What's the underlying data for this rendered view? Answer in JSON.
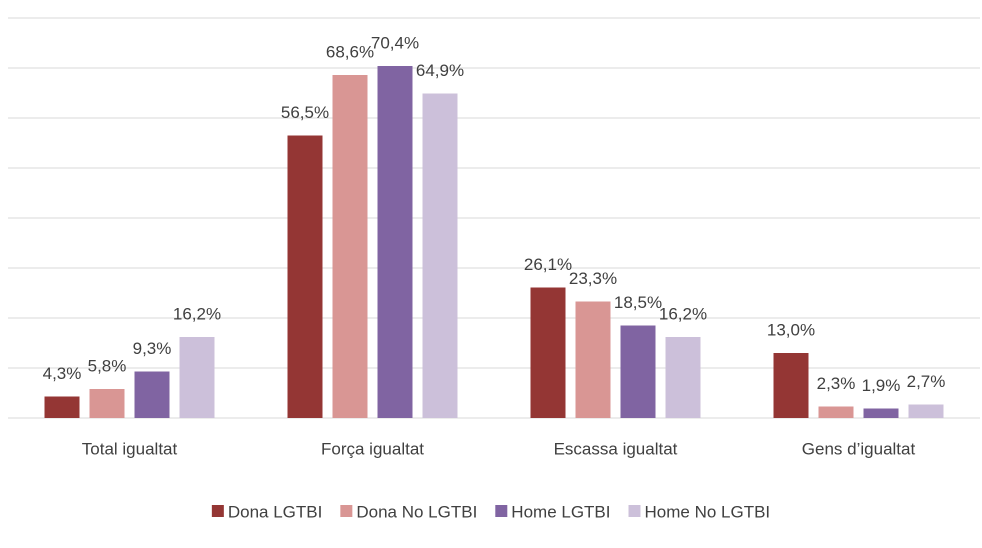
{
  "chart_data": {
    "type": "bar",
    "categories": [
      "Total igualtat",
      "Força igualtat",
      "Escassa igualtat",
      "Gens d’igualtat"
    ],
    "series": [
      {
        "name": "Dona LGTBI",
        "color": "#943634",
        "values": [
          4.3,
          56.5,
          26.1,
          13.0
        ],
        "value_labels": [
          "4,3%",
          "56,5%",
          "26,1%",
          "13,0%"
        ]
      },
      {
        "name": "Dona No LGTBI",
        "color": "#d99694",
        "values": [
          5.8,
          68.6,
          23.3,
          2.3
        ],
        "value_labels": [
          "5,8%",
          "68,6%",
          "23,3%",
          "2,3%"
        ]
      },
      {
        "name": "Home LGTBI",
        "color": "#8064a2",
        "values": [
          9.3,
          70.4,
          18.5,
          1.9
        ],
        "value_labels": [
          "9,3%",
          "70,4%",
          "18,5%",
          "1,9%"
        ]
      },
      {
        "name": "Home No LGTBI",
        "color": "#ccc0da",
        "values": [
          16.2,
          64.9,
          16.2,
          2.7
        ],
        "value_labels": [
          "16,2%",
          "64,9%",
          "16,2%",
          "2,7%"
        ]
      }
    ],
    "ylim": [
      0,
      80
    ],
    "yticks": [
      0,
      10,
      20,
      30,
      40,
      50,
      60,
      70,
      80
    ],
    "grid": true,
    "legend": "bottom"
  }
}
